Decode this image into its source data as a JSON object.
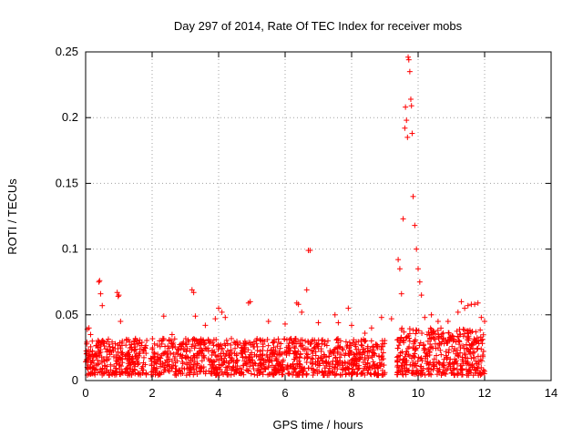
{
  "chart_data": {
    "type": "scatter",
    "title": "Day 297 of 2014, Rate Of TEC Index for receiver mobs",
    "xlabel": "GPS time / hours",
    "ylabel": "ROTI / TECUs",
    "xlim": [
      0,
      14
    ],
    "ylim": [
      0,
      0.25
    ],
    "xticks": [
      0,
      2,
      4,
      6,
      8,
      10,
      12,
      14
    ],
    "yticks": [
      0,
      0.05,
      0.1,
      0.15,
      0.2,
      0.25
    ],
    "xtick_labels": [
      "0",
      "2",
      "4",
      "6",
      "8",
      "10",
      "12",
      "14"
    ],
    "ytick_labels": [
      "0",
      "0.05",
      "0.1",
      "0.15",
      "0.2",
      "0.25"
    ],
    "grid": true,
    "marker": "+",
    "color": "#ff0000",
    "series": [
      {
        "name": "ROTI",
        "background_band": {
          "x_range": [
            0.0,
            12.0
          ],
          "y_min": 0.004,
          "y_max": 0.032,
          "note": "dense cloud of points between 0 and 12 hours"
        },
        "x": [
          0.05,
          0.1,
          0.15,
          0.2,
          0.4,
          0.42,
          0.45,
          0.5,
          0.95,
          0.98,
          1.0,
          1.05,
          1.5,
          1.6,
          2.35,
          2.6,
          3.2,
          3.25,
          3.3,
          3.6,
          3.9,
          4.0,
          4.1,
          4.2,
          4.9,
          4.95,
          5.5,
          6.0,
          6.35,
          6.4,
          6.5,
          6.65,
          6.7,
          6.75,
          7.0,
          7.5,
          7.6,
          7.9,
          8.0,
          8.4,
          8.6,
          8.9,
          9.2,
          9.4,
          9.45,
          9.5,
          9.55,
          9.6,
          9.62,
          9.65,
          9.68,
          9.7,
          9.72,
          9.75,
          9.78,
          9.8,
          9.82,
          9.85,
          9.9,
          9.95,
          10.0,
          10.05,
          10.1,
          10.2,
          10.4,
          10.6,
          10.9,
          11.2,
          11.3,
          11.4,
          11.5,
          11.6,
          11.7,
          11.8,
          11.9,
          12.0
        ],
        "y": [
          0.039,
          0.04,
          0.035,
          0.03,
          0.075,
          0.076,
          0.066,
          0.057,
          0.067,
          0.064,
          0.065,
          0.045,
          0.032,
          0.028,
          0.049,
          0.035,
          0.069,
          0.067,
          0.049,
          0.042,
          0.047,
          0.055,
          0.052,
          0.048,
          0.059,
          0.06,
          0.045,
          0.043,
          0.059,
          0.058,
          0.052,
          0.069,
          0.099,
          0.099,
          0.044,
          0.05,
          0.044,
          0.055,
          0.042,
          0.036,
          0.04,
          0.048,
          0.047,
          0.092,
          0.085,
          0.066,
          0.123,
          0.192,
          0.208,
          0.198,
          0.185,
          0.246,
          0.244,
          0.235,
          0.214,
          0.209,
          0.188,
          0.14,
          0.118,
          0.1,
          0.085,
          0.075,
          0.065,
          0.048,
          0.05,
          0.045,
          0.045,
          0.052,
          0.06,
          0.055,
          0.057,
          0.058,
          0.058,
          0.059,
          0.048,
          0.045
        ]
      }
    ]
  }
}
